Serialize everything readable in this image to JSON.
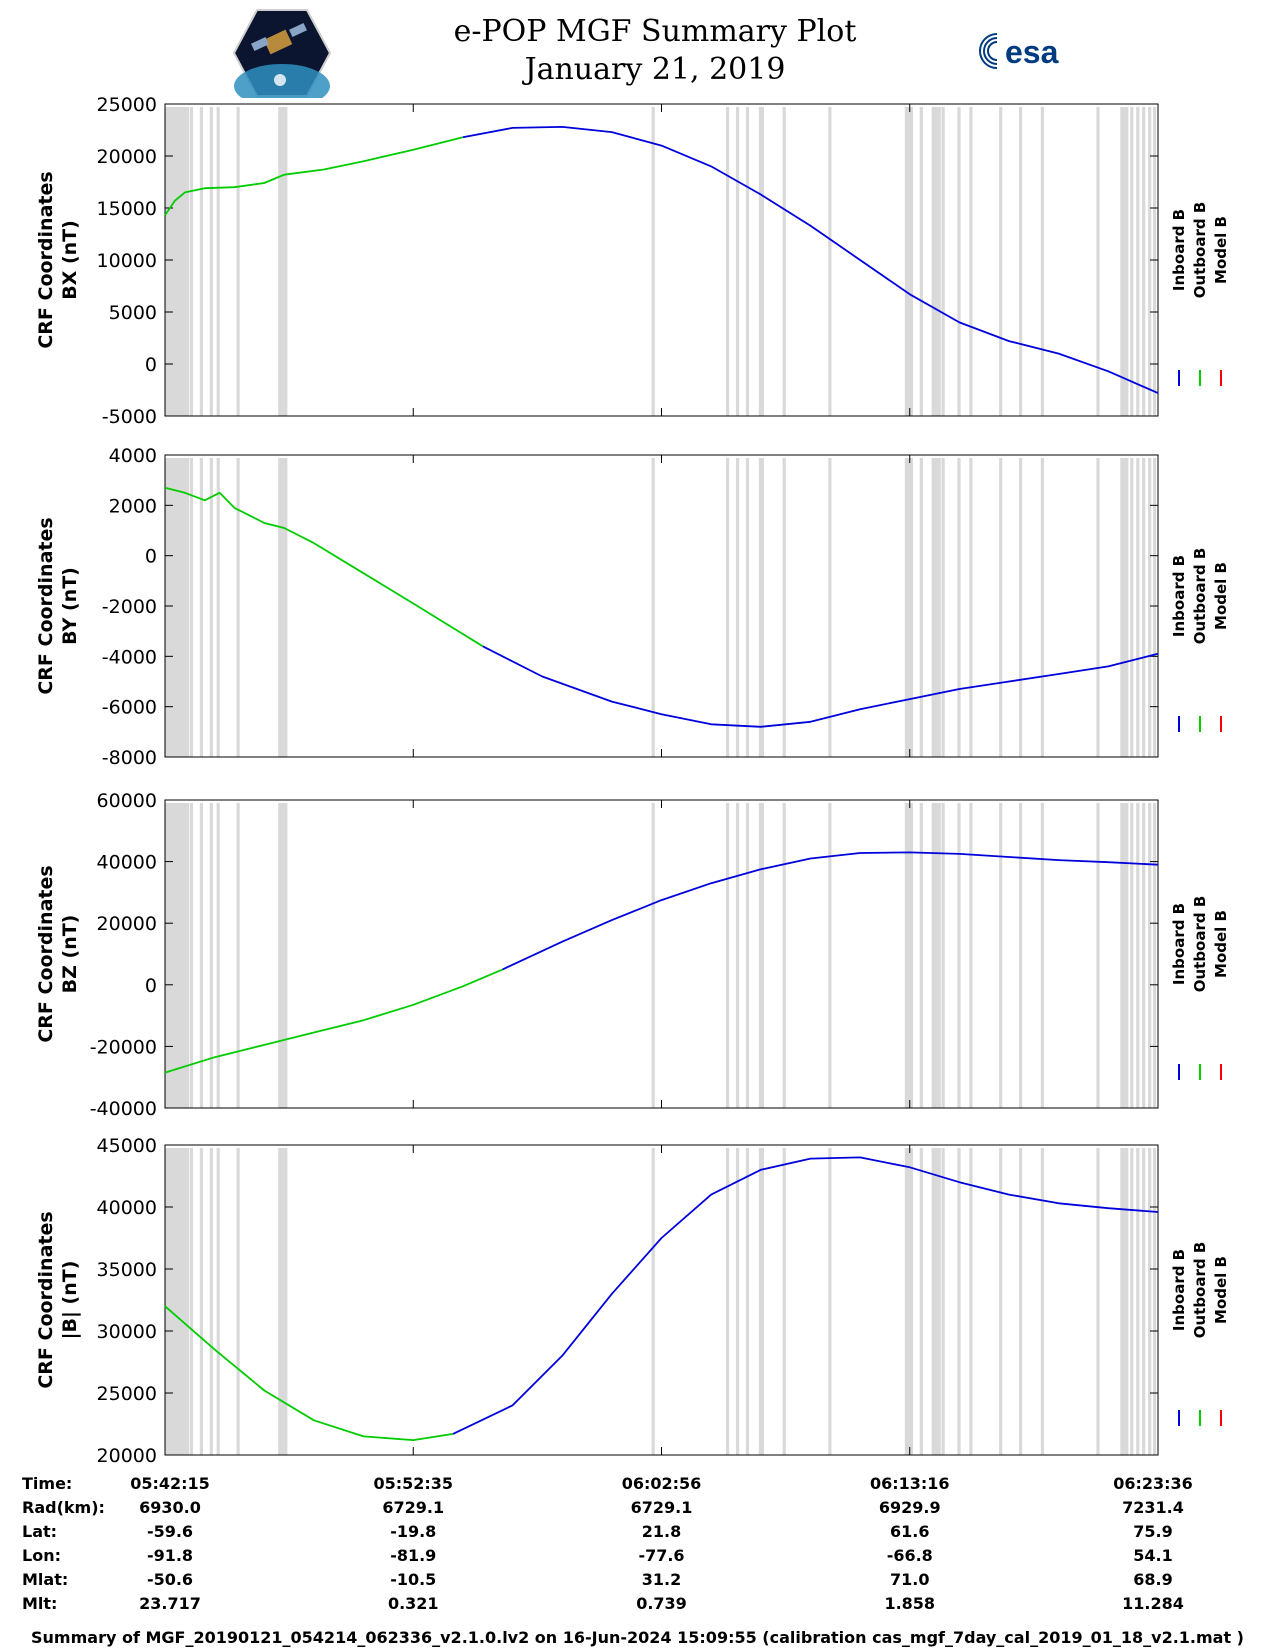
{
  "title": "e-POP MGF Summary Plot",
  "date": "January 21, 2019",
  "logos": {
    "left": "cassiope-satellite-logo",
    "esa_text": "esa"
  },
  "colors": {
    "inboard": "#0000dd",
    "outboard": "#00cc00",
    "model": "#ff0000",
    "gap": "#d9d9d9"
  },
  "chart_data": [
    {
      "type": "line",
      "ylabel": [
        "CRF Coordinates",
        "BX (nT)"
      ],
      "ylim": [
        -5000,
        25000
      ],
      "yticks": [
        "25000",
        "20000",
        "15000",
        "10000",
        "5000",
        "0",
        "-5000"
      ],
      "legend": [
        "Inboard B",
        "Outboard B",
        "Model B"
      ],
      "series": [
        {
          "name": "Outboard B",
          "x": [
            0,
            0.01,
            0.02,
            0.04,
            0.07,
            0.1,
            0.12,
            0.16,
            0.2,
            0.25,
            0.3
          ],
          "values": [
            14300,
            15700,
            16500,
            16900,
            17000,
            17400,
            18200,
            18700,
            19500,
            20600,
            21800
          ]
        },
        {
          "name": "Inboard B",
          "x": [
            0.3,
            0.35,
            0.4,
            0.45,
            0.5,
            0.55,
            0.6,
            0.65,
            0.7,
            0.75,
            0.8,
            0.85,
            0.9,
            0.95,
            1.0
          ],
          "values": [
            21800,
            22700,
            22800,
            22300,
            21000,
            19000,
            16300,
            13300,
            10000,
            6700,
            4000,
            2200,
            1000,
            -700,
            -2800
          ]
        }
      ]
    },
    {
      "type": "line",
      "ylabel": [
        "CRF Coordinates",
        "BY (nT)"
      ],
      "ylim": [
        -8000,
        4000
      ],
      "yticks": [
        "4000",
        "2000",
        "0",
        "-2000",
        "-4000",
        "-6000",
        "-8000"
      ],
      "legend": [
        "Inboard B",
        "Outboard B",
        "Model B"
      ],
      "series": [
        {
          "name": "Outboard B",
          "x": [
            0,
            0.02,
            0.04,
            0.055,
            0.07,
            0.1,
            0.12,
            0.15,
            0.2,
            0.25,
            0.32
          ],
          "values": [
            2700,
            2500,
            2200,
            2500,
            1900,
            1300,
            1100,
            500,
            -700,
            -1900,
            -3600
          ]
        },
        {
          "name": "Inboard B",
          "x": [
            0.32,
            0.38,
            0.45,
            0.5,
            0.55,
            0.6,
            0.65,
            0.7,
            0.75,
            0.8,
            0.85,
            0.9,
            0.95,
            1.0
          ],
          "values": [
            -3600,
            -4800,
            -5800,
            -6300,
            -6700,
            -6800,
            -6600,
            -6100,
            -5700,
            -5300,
            -5000,
            -4700,
            -4400,
            -3900
          ]
        }
      ]
    },
    {
      "type": "line",
      "ylabel": [
        "CRF Coordinates",
        "BZ (nT)"
      ],
      "ylim": [
        -40000,
        60000
      ],
      "yticks": [
        "60000",
        "40000",
        "20000",
        "0",
        "-20000",
        "-40000"
      ],
      "legend": [
        "Inboard B",
        "Outboard B",
        "Model B"
      ],
      "series": [
        {
          "name": "Outboard B",
          "x": [
            0,
            0.05,
            0.1,
            0.15,
            0.2,
            0.25,
            0.3,
            0.34
          ],
          "values": [
            -28500,
            -23500,
            -19500,
            -15500,
            -11500,
            -6500,
            -500,
            5000
          ]
        },
        {
          "name": "Inboard B",
          "x": [
            0.34,
            0.4,
            0.45,
            0.5,
            0.55,
            0.6,
            0.65,
            0.7,
            0.75,
            0.8,
            0.85,
            0.9,
            0.95,
            1.0
          ],
          "values": [
            5000,
            14000,
            21000,
            27500,
            33000,
            37500,
            41000,
            42800,
            43000,
            42500,
            41500,
            40500,
            39800,
            39000
          ]
        }
      ]
    },
    {
      "type": "line",
      "ylabel": [
        "CRF Coordinates",
        "|B| (nT)"
      ],
      "ylim": [
        20000,
        45000
      ],
      "yticks": [
        "45000",
        "40000",
        "35000",
        "30000",
        "25000",
        "20000"
      ],
      "legend": [
        "Inboard B",
        "Outboard B",
        "Model B"
      ],
      "series": [
        {
          "name": "Outboard B",
          "x": [
            0,
            0.05,
            0.1,
            0.15,
            0.2,
            0.25,
            0.29
          ],
          "values": [
            32000,
            28500,
            25200,
            22800,
            21500,
            21200,
            21700
          ]
        },
        {
          "name": "Inboard B",
          "x": [
            0.29,
            0.35,
            0.4,
            0.45,
            0.5,
            0.55,
            0.6,
            0.65,
            0.7,
            0.75,
            0.8,
            0.85,
            0.9,
            0.95,
            1.0
          ],
          "values": [
            21700,
            24000,
            28000,
            33000,
            37500,
            41000,
            43000,
            43900,
            44000,
            43200,
            42000,
            41000,
            40300,
            39900,
            39600
          ]
        }
      ]
    }
  ],
  "gaps": [
    0.0,
    0.003,
    0.006,
    0.009,
    0.012,
    0.015,
    0.018,
    0.021,
    0.025,
    0.035,
    0.045,
    0.052,
    0.072,
    0.114,
    0.117,
    0.12,
    0.49,
    0.565,
    0.575,
    0.585,
    0.598,
    0.6,
    0.622,
    0.668,
    0.745,
    0.747,
    0.75,
    0.76,
    0.772,
    0.775,
    0.778,
    0.782,
    0.798,
    0.81,
    0.84,
    0.86,
    0.882,
    0.938,
    0.962,
    0.964,
    0.967,
    0.972,
    0.978,
    0.984,
    0.99,
    0.995
  ],
  "time_ticks": [
    "05:42:15",
    "05:52:35",
    "06:02:56",
    "06:13:16",
    "06:23:36"
  ],
  "ephemeris": [
    {
      "label": "Time:",
      "values": [
        "05:42:15",
        "05:52:35",
        "06:02:56",
        "06:13:16",
        "06:23:36"
      ]
    },
    {
      "label": "Rad(km):",
      "values": [
        "6930.0",
        "6729.1",
        "6729.1",
        "6929.9",
        "7231.4"
      ]
    },
    {
      "label": "Lat:",
      "values": [
        "-59.6",
        "-19.8",
        "21.8",
        "61.6",
        "75.9"
      ]
    },
    {
      "label": "Lon:",
      "values": [
        "-91.8",
        "-81.9",
        "-77.6",
        "-66.8",
        "54.1"
      ]
    },
    {
      "label": "Mlat:",
      "values": [
        "-50.6",
        "-10.5",
        "31.2",
        "71.0",
        "68.9"
      ]
    },
    {
      "label": "Mlt:",
      "values": [
        "23.717",
        "0.321",
        "0.739",
        "1.858",
        "11.284"
      ]
    }
  ],
  "footer": "Summary of MGF_20190121_054214_062336_v2.1.0.lv2 on 16-Jun-2024 15:09:55 (calibration cas_mgf_7day_cal_2019_01_18_v2.1.mat )"
}
